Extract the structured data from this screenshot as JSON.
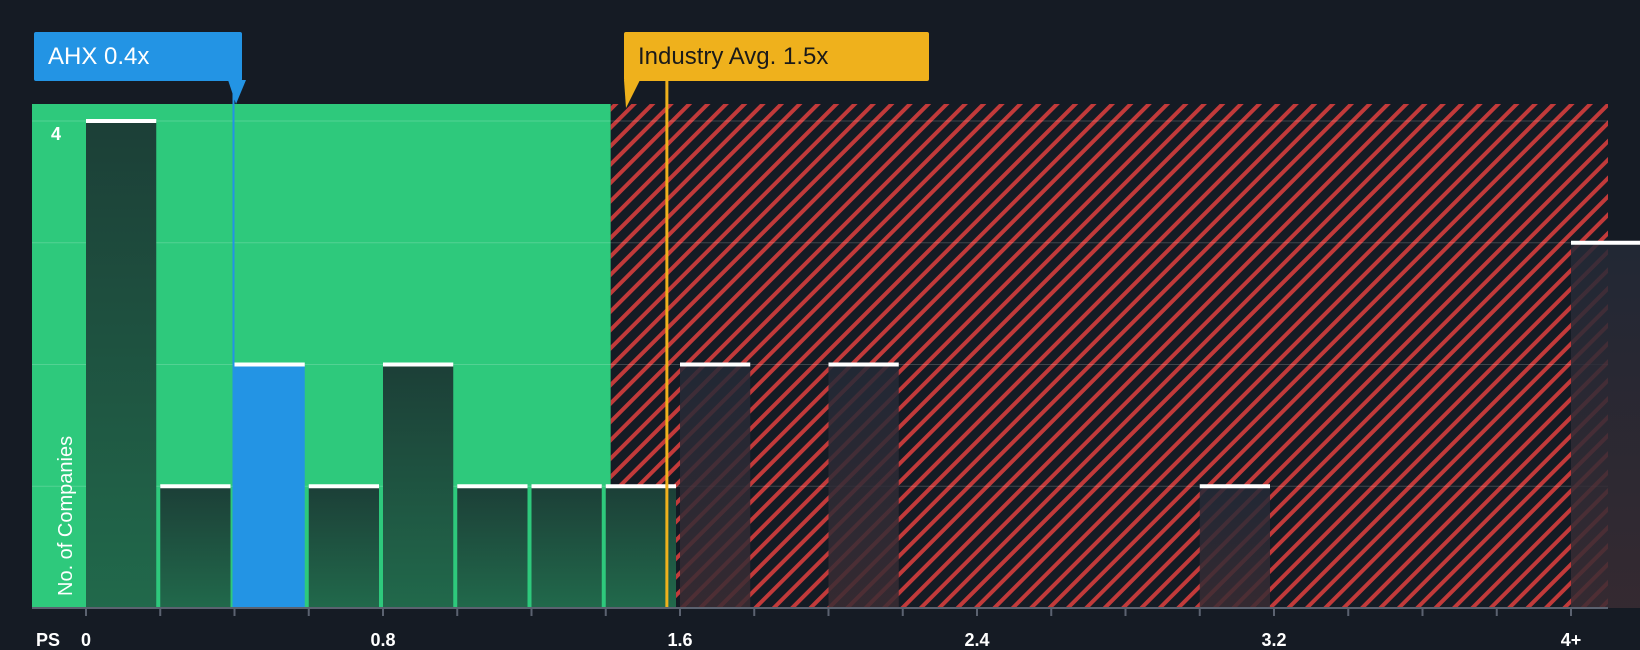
{
  "chart_data": {
    "type": "bar",
    "x_axis_prefix": "PS",
    "ylabel": "No. of Companies",
    "x_ticks": [
      "0",
      "0.8",
      "1.6",
      "2.4",
      "3.2",
      "4+"
    ],
    "x_tick_values": [
      0,
      0.8,
      1.6,
      2.4,
      3.2,
      4.0
    ],
    "y_ticks": [
      "4"
    ],
    "ylim": [
      0,
      4
    ],
    "bin_width": 0.2,
    "bins": [
      {
        "x": 0.0,
        "count": 4
      },
      {
        "x": 0.2,
        "count": 1
      },
      {
        "x": 0.4,
        "count": 2,
        "highlight": true
      },
      {
        "x": 0.6,
        "count": 1
      },
      {
        "x": 0.8,
        "count": 2
      },
      {
        "x": 1.0,
        "count": 1
      },
      {
        "x": 1.2,
        "count": 1
      },
      {
        "x": 1.4,
        "count": 1
      },
      {
        "x": 1.6,
        "count": 2
      },
      {
        "x": 2.0,
        "count": 2
      },
      {
        "x": 3.0,
        "count": 1
      },
      {
        "x": 4.0,
        "count": 3
      }
    ],
    "company": {
      "label": "AHX 0.4x",
      "value": 0.4
    },
    "industry_avg": {
      "label": "Industry Avg. 1.5x",
      "value": 1.5
    },
    "fair_zone_end": 1.4,
    "colors": {
      "background": "#151b24",
      "fair_zone": "#2ec97c",
      "overvalued_zone": "#cf3c3c",
      "bar": "#1f4a3c",
      "bar_overvalued": "#272a36",
      "highlight_bar": "#2394e4",
      "company_marker": "#2394e4",
      "industry_marker": "#efb11c",
      "text": "#ffffff"
    }
  }
}
